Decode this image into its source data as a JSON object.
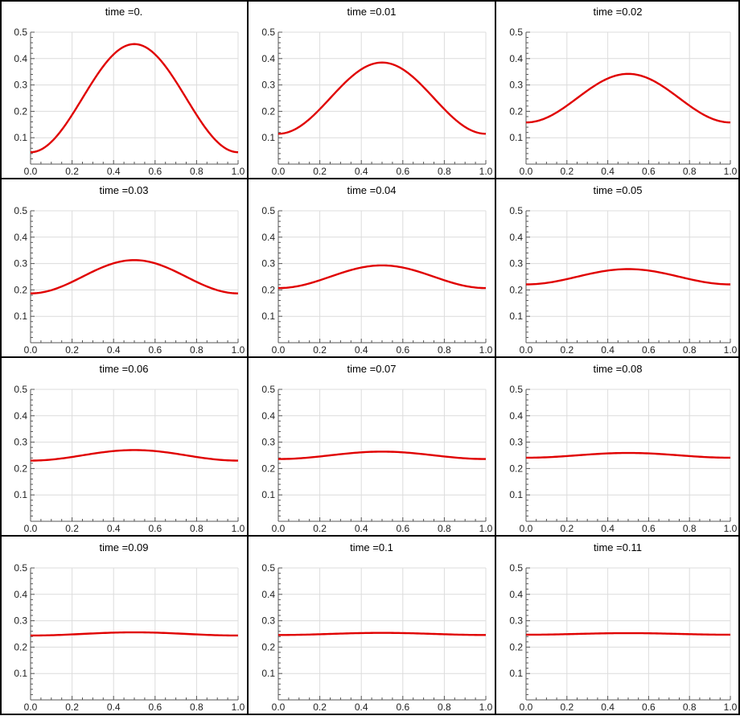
{
  "chart_data": [
    {
      "type": "line",
      "title": "time =0.",
      "xlim": [
        0,
        1
      ],
      "ylim": [
        0,
        0.5
      ],
      "x_ticks": [
        "0.0",
        "0.2",
        "0.4",
        "0.6",
        "0.8",
        "1.0"
      ],
      "y_ticks": [
        "0.1",
        "0.2",
        "0.3",
        "0.4",
        "0.5"
      ],
      "curve": {
        "mean": 0.25,
        "amplitude": 0.205,
        "x": [
          0,
          0.1,
          0.2,
          0.3,
          0.4,
          0.5,
          0.6,
          0.7,
          0.8,
          0.9,
          1.0
        ],
        "y": [
          0.045,
          0.084,
          0.187,
          0.313,
          0.416,
          0.455,
          0.416,
          0.313,
          0.187,
          0.084,
          0.045
        ]
      },
      "color": "#e00000",
      "grid": true
    },
    {
      "type": "line",
      "title": "time =0.01",
      "xlim": [
        0,
        1
      ],
      "ylim": [
        0,
        0.5
      ],
      "x_ticks": [
        "0.0",
        "0.2",
        "0.4",
        "0.6",
        "0.8",
        "1.0"
      ],
      "y_ticks": [
        "0.1",
        "0.2",
        "0.3",
        "0.4",
        "0.5"
      ],
      "curve": {
        "mean": 0.25,
        "amplitude": 0.135,
        "x": [
          0,
          0.1,
          0.2,
          0.3,
          0.4,
          0.5,
          0.6,
          0.7,
          0.8,
          0.9,
          1.0
        ],
        "y": [
          0.115,
          0.141,
          0.208,
          0.292,
          0.359,
          0.385,
          0.359,
          0.292,
          0.208,
          0.141,
          0.115
        ]
      },
      "color": "#e00000",
      "grid": true
    },
    {
      "type": "line",
      "title": "time =0.02",
      "xlim": [
        0,
        1
      ],
      "ylim": [
        0,
        0.5
      ],
      "x_ticks": [
        "0.0",
        "0.2",
        "0.4",
        "0.6",
        "0.8",
        "1.0"
      ],
      "y_ticks": [
        "0.1",
        "0.2",
        "0.3",
        "0.4",
        "0.5"
      ],
      "curve": {
        "mean": 0.25,
        "amplitude": 0.092,
        "x": [
          0,
          0.1,
          0.2,
          0.3,
          0.4,
          0.5,
          0.6,
          0.7,
          0.8,
          0.9,
          1.0
        ],
        "y": [
          0.158,
          0.176,
          0.222,
          0.278,
          0.324,
          0.342,
          0.324,
          0.278,
          0.222,
          0.176,
          0.158
        ]
      },
      "color": "#e00000",
      "grid": true
    },
    {
      "type": "line",
      "title": "time =0.03",
      "xlim": [
        0,
        1
      ],
      "ylim": [
        0,
        0.5
      ],
      "x_ticks": [
        "0.0",
        "0.2",
        "0.4",
        "0.6",
        "0.8",
        "1.0"
      ],
      "y_ticks": [
        "0.1",
        "0.2",
        "0.3",
        "0.4",
        "0.5"
      ],
      "curve": {
        "mean": 0.25,
        "amplitude": 0.063,
        "x": [
          0,
          0.1,
          0.2,
          0.3,
          0.4,
          0.5,
          0.6,
          0.7,
          0.8,
          0.9,
          1.0
        ],
        "y": [
          0.187,
          0.199,
          0.231,
          0.269,
          0.301,
          0.313,
          0.301,
          0.269,
          0.231,
          0.199,
          0.187
        ]
      },
      "color": "#e00000",
      "grid": true
    },
    {
      "type": "line",
      "title": "time =0.04",
      "xlim": [
        0,
        1
      ],
      "ylim": [
        0,
        0.5
      ],
      "x_ticks": [
        "0.0",
        "0.2",
        "0.4",
        "0.6",
        "0.8",
        "1.0"
      ],
      "y_ticks": [
        "0.1",
        "0.2",
        "0.3",
        "0.4",
        "0.5"
      ],
      "curve": {
        "mean": 0.25,
        "amplitude": 0.043,
        "x": [
          0,
          0.1,
          0.2,
          0.3,
          0.4,
          0.5,
          0.6,
          0.7,
          0.8,
          0.9,
          1.0
        ],
        "y": [
          0.207,
          0.215,
          0.237,
          0.263,
          0.285,
          0.293,
          0.285,
          0.263,
          0.237,
          0.215,
          0.207
        ]
      },
      "color": "#e00000",
      "grid": true
    },
    {
      "type": "line",
      "title": "time =0.05",
      "xlim": [
        0,
        1
      ],
      "ylim": [
        0,
        0.5
      ],
      "x_ticks": [
        "0.0",
        "0.2",
        "0.4",
        "0.6",
        "0.8",
        "1.0"
      ],
      "y_ticks": [
        "0.1",
        "0.2",
        "0.3",
        "0.4",
        "0.5"
      ],
      "curve": {
        "mean": 0.25,
        "amplitude": 0.029,
        "x": [
          0,
          0.1,
          0.2,
          0.3,
          0.4,
          0.5,
          0.6,
          0.7,
          0.8,
          0.9,
          1.0
        ],
        "y": [
          0.221,
          0.227,
          0.241,
          0.259,
          0.273,
          0.279,
          0.273,
          0.259,
          0.241,
          0.227,
          0.221
        ]
      },
      "color": "#e00000",
      "grid": true
    },
    {
      "type": "line",
      "title": "time =0.06",
      "xlim": [
        0,
        1
      ],
      "ylim": [
        0,
        0.5
      ],
      "x_ticks": [
        "0.0",
        "0.2",
        "0.4",
        "0.6",
        "0.8",
        "1.0"
      ],
      "y_ticks": [
        "0.1",
        "0.2",
        "0.3",
        "0.4",
        "0.5"
      ],
      "curve": {
        "mean": 0.25,
        "amplitude": 0.02,
        "x": [
          0,
          0.1,
          0.2,
          0.3,
          0.4,
          0.5,
          0.6,
          0.7,
          0.8,
          0.9,
          1.0
        ],
        "y": [
          0.23,
          0.234,
          0.244,
          0.256,
          0.266,
          0.27,
          0.266,
          0.256,
          0.244,
          0.234,
          0.23
        ]
      },
      "color": "#e00000",
      "grid": true
    },
    {
      "type": "line",
      "title": "time =0.07",
      "xlim": [
        0,
        1
      ],
      "ylim": [
        0,
        0.5
      ],
      "x_ticks": [
        "0.0",
        "0.2",
        "0.4",
        "0.6",
        "0.8",
        "1.0"
      ],
      "y_ticks": [
        "0.1",
        "0.2",
        "0.3",
        "0.4",
        "0.5"
      ],
      "curve": {
        "mean": 0.25,
        "amplitude": 0.014,
        "x": [
          0,
          0.1,
          0.2,
          0.3,
          0.4,
          0.5,
          0.6,
          0.7,
          0.8,
          0.9,
          1.0
        ],
        "y": [
          0.236,
          0.239,
          0.246,
          0.254,
          0.261,
          0.264,
          0.261,
          0.254,
          0.246,
          0.239,
          0.236
        ]
      },
      "color": "#e00000",
      "grid": true
    },
    {
      "type": "line",
      "title": "time =0.08",
      "xlim": [
        0,
        1
      ],
      "ylim": [
        0,
        0.5
      ],
      "x_ticks": [
        "0.0",
        "0.2",
        "0.4",
        "0.6",
        "0.8",
        "1.0"
      ],
      "y_ticks": [
        "0.1",
        "0.2",
        "0.3",
        "0.4",
        "0.5"
      ],
      "curve": {
        "mean": 0.25,
        "amplitude": 0.009,
        "x": [
          0,
          0.1,
          0.2,
          0.3,
          0.4,
          0.5,
          0.6,
          0.7,
          0.8,
          0.9,
          1.0
        ],
        "y": [
          0.241,
          0.243,
          0.247,
          0.253,
          0.257,
          0.259,
          0.257,
          0.253,
          0.247,
          0.243,
          0.241
        ]
      },
      "color": "#e00000",
      "grid": true
    },
    {
      "type": "line",
      "title": "time =0.09",
      "xlim": [
        0,
        1
      ],
      "ylim": [
        0,
        0.5
      ],
      "x_ticks": [
        "0.0",
        "0.2",
        "0.4",
        "0.6",
        "0.8",
        "1.0"
      ],
      "y_ticks": [
        "0.1",
        "0.2",
        "0.3",
        "0.4",
        "0.5"
      ],
      "curve": {
        "mean": 0.25,
        "amplitude": 0.006,
        "x": [
          0,
          0.1,
          0.2,
          0.3,
          0.4,
          0.5,
          0.6,
          0.7,
          0.8,
          0.9,
          1.0
        ],
        "y": [
          0.244,
          0.245,
          0.248,
          0.252,
          0.255,
          0.256,
          0.255,
          0.252,
          0.248,
          0.245,
          0.244
        ]
      },
      "color": "#e00000",
      "grid": true
    },
    {
      "type": "line",
      "title": "time =0.1",
      "xlim": [
        0,
        1
      ],
      "ylim": [
        0,
        0.5
      ],
      "x_ticks": [
        "0.0",
        "0.2",
        "0.4",
        "0.6",
        "0.8",
        "1.0"
      ],
      "y_ticks": [
        "0.1",
        "0.2",
        "0.3",
        "0.4",
        "0.5"
      ],
      "curve": {
        "mean": 0.25,
        "amplitude": 0.004,
        "x": [
          0,
          0.1,
          0.2,
          0.3,
          0.4,
          0.5,
          0.6,
          0.7,
          0.8,
          0.9,
          1.0
        ],
        "y": [
          0.246,
          0.247,
          0.249,
          0.251,
          0.253,
          0.254,
          0.253,
          0.251,
          0.249,
          0.247,
          0.246
        ]
      },
      "color": "#e00000",
      "grid": true
    },
    {
      "type": "line",
      "title": "time =0.11",
      "xlim": [
        0,
        1
      ],
      "ylim": [
        0,
        0.5
      ],
      "x_ticks": [
        "0.0",
        "0.2",
        "0.4",
        "0.6",
        "0.8",
        "1.0"
      ],
      "y_ticks": [
        "0.1",
        "0.2",
        "0.3",
        "0.4",
        "0.5"
      ],
      "curve": {
        "mean": 0.25,
        "amplitude": 0.003,
        "x": [
          0,
          0.1,
          0.2,
          0.3,
          0.4,
          0.5,
          0.6,
          0.7,
          0.8,
          0.9,
          1.0
        ],
        "y": [
          0.247,
          0.248,
          0.249,
          0.251,
          0.252,
          0.253,
          0.252,
          0.251,
          0.249,
          0.248,
          0.247
        ]
      },
      "color": "#e00000",
      "grid": true
    }
  ]
}
